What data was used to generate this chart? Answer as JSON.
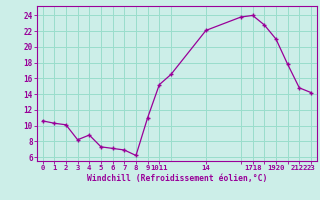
{
  "x": [
    0,
    1,
    2,
    3,
    4,
    5,
    6,
    7,
    8,
    9,
    10,
    11,
    14,
    17,
    18,
    19,
    20,
    21,
    22,
    23
  ],
  "y": [
    10.6,
    10.3,
    10.1,
    8.2,
    8.8,
    7.3,
    7.1,
    6.9,
    6.2,
    11.0,
    15.2,
    16.5,
    22.1,
    23.8,
    24.0,
    22.8,
    21.0,
    17.8,
    14.8,
    14.2
  ],
  "line_color": "#990099",
  "marker": "+",
  "bg_color": "#cceee8",
  "grid_color": "#99ddcc",
  "xlabel": "Windchill (Refroidissement éolien,°C)",
  "xlabel_color": "#990099",
  "xtick_positions": [
    0,
    1,
    2,
    3,
    4,
    5,
    6,
    7,
    8,
    9,
    10,
    14,
    17,
    18,
    19,
    20,
    21,
    22,
    23
  ],
  "xtick_labels": [
    "0",
    "1",
    "2",
    "3",
    "4",
    "5",
    "6",
    "7",
    "8",
    "9",
    "1011",
    "14",
    "",
    "1718",
    "",
    "1920",
    "",
    "2122",
    "23"
  ],
  "grid_x": [
    0,
    1,
    2,
    3,
    4,
    5,
    6,
    7,
    8,
    9,
    10,
    11,
    14,
    17,
    18,
    19,
    20,
    21,
    22,
    23
  ],
  "yticks": [
    6,
    8,
    10,
    12,
    14,
    16,
    18,
    20,
    22,
    24
  ],
  "ylim": [
    5.5,
    25.2
  ],
  "xlim": [
    -0.5,
    23.5
  ],
  "tick_color": "#990099",
  "axis_color": "#990099"
}
